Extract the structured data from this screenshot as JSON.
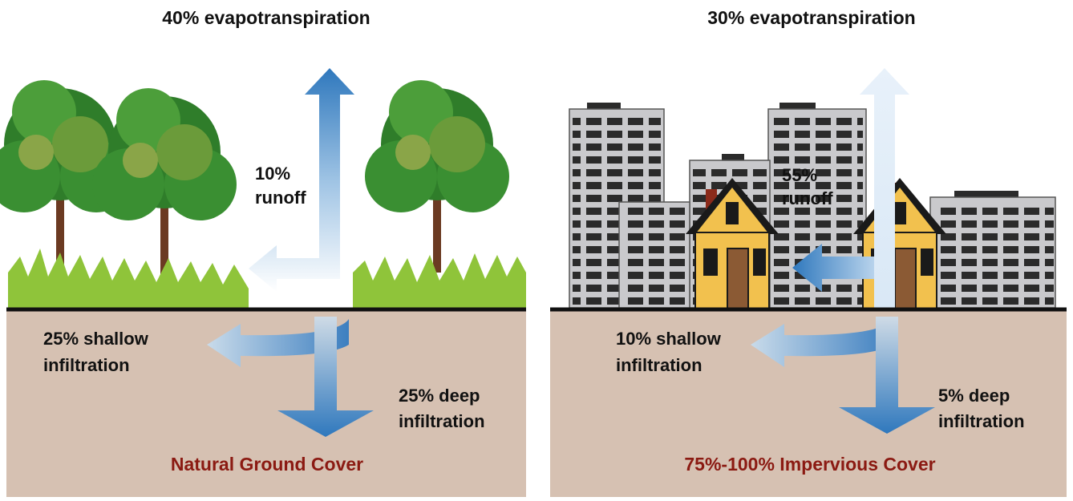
{
  "panels": [
    {
      "title": "40% evapotranspiration",
      "runoff": [
        "10%",
        "runoff"
      ],
      "shallow": [
        "25% shallow",
        "infiltration"
      ],
      "deep": [
        "25% deep",
        "infiltration"
      ],
      "cover": "Natural Ground Cover"
    },
    {
      "title": "30% evapotranspiration",
      "runoff": [
        "55%",
        "runoff"
      ],
      "shallow": [
        "10% shallow",
        "infiltration"
      ],
      "deep": [
        "5% deep",
        "infiltration"
      ],
      "cover": "75%-100% Impervious Cover"
    }
  ]
}
